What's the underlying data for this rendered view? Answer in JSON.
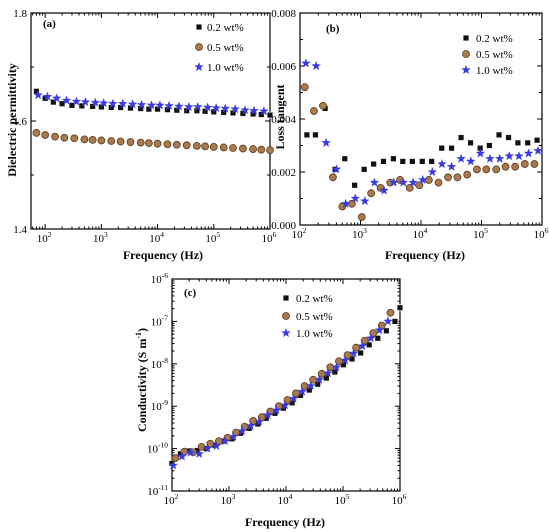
{
  "figure": {
    "colors": {
      "s02": "#111111",
      "s05_fill": "#a97a4e",
      "s05_edge": "#5a3a1a",
      "s10": "#3a3ae0"
    }
  },
  "chart_data": [
    {
      "id": "a",
      "type": "scatter",
      "panel_label": "(a)",
      "xlabel": "Frequency (Hz)",
      "ylabel": "Dielectric permittivity",
      "xscale": "log",
      "xlim": [
        56,
        1000000
      ],
      "ylim": [
        1.4,
        1.8
      ],
      "yticks": [
        {
          "v": 1.4,
          "label": "1.4"
        },
        {
          "v": 1.6,
          "label": "1.6"
        },
        {
          "v": 1.8,
          "label": "1.8"
        }
      ],
      "legend_position": "top-right",
      "series": [
        {
          "name": "0.2 wt%",
          "marker": "square",
          "x": [
            70,
            100,
            140,
            200,
            300,
            450,
            700,
            1000,
            1500,
            2200,
            3300,
            5000,
            7000,
            10000,
            15000,
            22000,
            33000,
            50000,
            70000,
            100000,
            150000,
            220000,
            330000,
            500000,
            700000,
            1000000
          ],
          "y": [
            1.655,
            1.642,
            1.635,
            1.632,
            1.629,
            1.628,
            1.627,
            1.626,
            1.625,
            1.625,
            1.624,
            1.623,
            1.622,
            1.622,
            1.621,
            1.62,
            1.619,
            1.619,
            1.618,
            1.617,
            1.616,
            1.615,
            1.614,
            1.613,
            1.612,
            1.611
          ]
        },
        {
          "name": "0.5 wt%",
          "marker": "circle",
          "x": [
            70,
            100,
            150,
            220,
            330,
            500,
            700,
            1000,
            1500,
            2200,
            3300,
            5000,
            7000,
            10000,
            15000,
            22000,
            33000,
            50000,
            70000,
            100000,
            150000,
            220000,
            330000,
            500000,
            700000,
            1000000
          ],
          "y": [
            1.578,
            1.574,
            1.571,
            1.569,
            1.568,
            1.566,
            1.565,
            1.564,
            1.563,
            1.562,
            1.561,
            1.56,
            1.559,
            1.558,
            1.557,
            1.556,
            1.555,
            1.554,
            1.553,
            1.552,
            1.551,
            1.55,
            1.549,
            1.548,
            1.547,
            1.546
          ]
        },
        {
          "name": "1.0 wt%",
          "marker": "star",
          "x": [
            75,
            110,
            160,
            240,
            360,
            520,
            780,
            1100,
            1600,
            2400,
            3600,
            5200,
            7800,
            11000,
            16000,
            24000,
            36000,
            52000,
            78000,
            110000,
            160000,
            240000,
            360000,
            520000,
            780000
          ],
          "y": [
            1.648,
            1.645,
            1.642,
            1.638,
            1.636,
            1.635,
            1.634,
            1.633,
            1.632,
            1.632,
            1.631,
            1.63,
            1.629,
            1.629,
            1.628,
            1.627,
            1.626,
            1.626,
            1.625,
            1.624,
            1.623,
            1.622,
            1.62,
            1.619,
            1.618
          ]
        }
      ]
    },
    {
      "id": "b",
      "type": "scatter",
      "panel_label": "(b)",
      "xlabel": "Frequency (Hz)",
      "ylabel": "Loss tangent",
      "xscale": "log",
      "xlim": [
        100,
        1000000
      ],
      "ylim": [
        0,
        0.008
      ],
      "yticks": [
        {
          "v": 0,
          "label": "0.000"
        },
        {
          "v": 0.002,
          "label": "0.002"
        },
        {
          "v": 0.004,
          "label": "0.004"
        },
        {
          "v": 0.006,
          "label": "0.006"
        },
        {
          "v": 0.008,
          "label": "0.008"
        }
      ],
      "legend_position": "top-right",
      "series": [
        {
          "name": "0.2 wt%",
          "marker": "square",
          "x": [
            130,
            180,
            260,
            380,
            550,
            800,
            1150,
            1650,
            2400,
            3500,
            5000,
            7200,
            10500,
            15000,
            22000,
            32000,
            46000,
            66000,
            95000,
            135000,
            195000,
            280000,
            400000,
            580000,
            830000
          ],
          "y": [
            0.0034,
            0.0034,
            0.0044,
            0.0021,
            0.0025,
            0.0015,
            0.0021,
            0.0023,
            0.0024,
            0.0025,
            0.0024,
            0.0024,
            0.0024,
            0.0024,
            0.0029,
            0.0029,
            0.0033,
            0.0031,
            0.0029,
            0.003,
            0.0034,
            0.0033,
            0.0031,
            0.0031,
            0.0032
          ]
        },
        {
          "name": "0.5 wt%",
          "marker": "circle",
          "x": [
            120,
            170,
            240,
            350,
            500,
            720,
            1050,
            1500,
            2150,
            3100,
            4500,
            6500,
            9400,
            13500,
            19500,
            28000,
            40000,
            58000,
            84000,
            120000,
            175000,
            250000,
            360000,
            520000,
            750000
          ],
          "y": [
            0.0052,
            0.0043,
            0.0045,
            0.0018,
            0.0007,
            0.0008,
            0.0003,
            0.0012,
            0.0014,
            0.0016,
            0.0017,
            0.0014,
            0.0015,
            0.0017,
            0.0016,
            0.0018,
            0.0018,
            0.0019,
            0.0021,
            0.0021,
            0.0021,
            0.0022,
            0.0022,
            0.0023,
            0.0023
          ]
        },
        {
          "name": "1.0 wt%",
          "marker": "star",
          "x": [
            125,
            185,
            270,
            400,
            570,
            820,
            1180,
            1700,
            2450,
            3550,
            5100,
            7400,
            10700,
            15400,
            22200,
            32000,
            46000,
            66500,
            96000,
            138000,
            200000,
            288000,
            415000,
            600000,
            860000
          ],
          "y": [
            0.0061,
            0.006,
            0.0031,
            0.0021,
            0.0008,
            0.001,
            0.0009,
            0.0016,
            0.0013,
            0.0016,
            0.0016,
            0.0016,
            0.0017,
            0.002,
            0.0023,
            0.0022,
            0.0025,
            0.0024,
            0.0027,
            0.0025,
            0.0025,
            0.0026,
            0.0026,
            0.0027,
            0.0028
          ]
        }
      ]
    },
    {
      "id": "c",
      "type": "scatter",
      "panel_label": "(c)",
      "xlabel": "Frequency (Hz)",
      "ylabel": "Conductivity (S m-1)",
      "ylabel_main": "Conductivity (S m",
      "ylabel_sup": "-1",
      "ylabel_close": ")",
      "xscale": "log",
      "yscale": "log",
      "xlim": [
        100,
        1000000
      ],
      "ylim": [
        1e-11,
        1e-06
      ],
      "legend_position": "top-right",
      "series": [
        {
          "name": "0.2 wt%",
          "marker": "square",
          "x": [
            100,
            140,
            200,
            280,
            400,
            570,
            800,
            1130,
            1600,
            2260,
            3200,
            4500,
            6400,
            9000,
            12800,
            18000,
            25600,
            36000,
            51000,
            72000,
            102000,
            144000,
            204000,
            288000,
            408000,
            576000,
            816000,
            1000000
          ],
          "y": [
            4.5e-11,
            7.5e-11,
            8.8e-11,
            9e-11,
            1e-10,
            1.2e-10,
            1.5e-10,
            1.7e-10,
            2.3e-10,
            3e-10,
            3.8e-10,
            5.2e-10,
            6.8e-10,
            9e-10,
            1.2e-09,
            1.8e-09,
            2.4e-09,
            3.3e-09,
            4.6e-09,
            6.4e-09,
            9.5e-09,
            1.3e-08,
            1.8e-08,
            2.8e-08,
            4e-08,
            6e-08,
            1e-07,
            2.1e-07
          ]
        },
        {
          "name": "0.5 wt%",
          "marker": "circle",
          "x": [
            115,
            165,
            235,
            330,
            470,
            665,
            940,
            1330,
            1880,
            2660,
            3760,
            5300,
            7500,
            10600,
            15000,
            21200,
            30000,
            42400,
            60000,
            85000,
            120000,
            170000,
            240000,
            340000,
            480000,
            680000
          ],
          "y": [
            6e-11,
            8.5e-11,
            8.2e-11,
            1.1e-10,
            1.3e-10,
            1.5e-10,
            1.8e-10,
            2.4e-10,
            3.3e-10,
            4.5e-10,
            5.5e-10,
            7.5e-10,
            1e-09,
            1.4e-09,
            2e-09,
            3e-09,
            4.2e-09,
            5.8e-09,
            8.3e-09,
            1.15e-08,
            1.6e-08,
            2.4e-08,
            3.5e-08,
            5.3e-08,
            8e-08,
            1.6e-07
          ]
        },
        {
          "name": "1.0 wt%",
          "marker": "star",
          "x": [
            105,
            150,
            210,
            300,
            420,
            600,
            850,
            1200,
            1700,
            2400,
            3400,
            4800,
            6800,
            9600,
            13600,
            19200,
            27200,
            38400,
            54400,
            76800,
            108800,
            153600,
            217600,
            307200,
            435200,
            614400
          ],
          "y": [
            4e-11,
            6.5e-11,
            8e-11,
            7.5e-11,
            1e-10,
            1.15e-10,
            1.5e-10,
            1.9e-10,
            2.6e-10,
            3.4e-10,
            4.3e-10,
            6.2e-10,
            8e-10,
            1.05e-09,
            1.5e-09,
            2.2e-09,
            3e-09,
            4.2e-09,
            6e-09,
            8.3e-09,
            1.2e-08,
            1.75e-08,
            2.6e-08,
            4e-08,
            6.2e-08,
            1e-07
          ]
        }
      ]
    }
  ]
}
